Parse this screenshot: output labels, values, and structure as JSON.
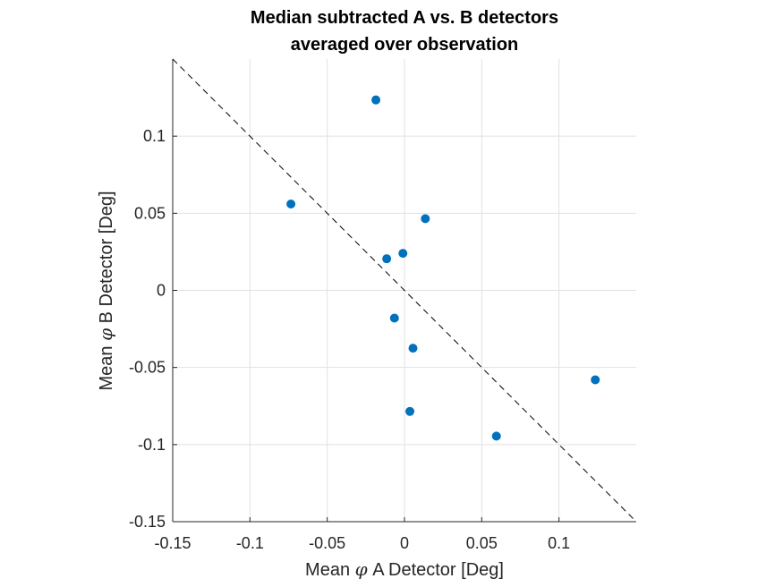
{
  "chart_data": {
    "type": "scatter",
    "title_lines": [
      "Median subtracted A vs. B detectors",
      "averaged over observation"
    ],
    "xlabel_prefix": "Mean ",
    "xlabel_symbol": "φ",
    "xlabel_suffix": " A Detector [Deg]",
    "ylabel_prefix": "Mean ",
    "ylabel_symbol": "φ",
    "ylabel_suffix": " B Detector [Deg]",
    "xlim": [
      -0.15,
      0.15
    ],
    "ylim": [
      -0.15,
      0.15
    ],
    "xticks": [
      -0.15,
      -0.1,
      -0.05,
      0,
      0.05,
      0.1
    ],
    "xtick_labels": [
      "-0.15",
      "-0.1",
      "-0.05",
      "0",
      "0.05",
      "0.1"
    ],
    "yticks": [
      -0.15,
      -0.1,
      -0.05,
      0,
      0.05,
      0.1
    ],
    "ytick_labels": [
      "-0.15",
      "-0.1",
      "-0.05",
      "0",
      "0.05",
      "0.1"
    ],
    "grid": true,
    "marker_color": "#0072BD",
    "reference_line": {
      "style": "dashed",
      "color": "#000000",
      "slope": -1,
      "intercept": 0
    },
    "points": [
      {
        "x": -0.0185,
        "y": 0.1235
      },
      {
        "x": -0.0735,
        "y": 0.056
      },
      {
        "x": 0.0135,
        "y": 0.0465
      },
      {
        "x": -0.0115,
        "y": 0.0205
      },
      {
        "x": -0.001,
        "y": 0.024
      },
      {
        "x": -0.0065,
        "y": -0.018
      },
      {
        "x": 0.0055,
        "y": -0.0375
      },
      {
        "x": 0.0035,
        "y": -0.0785
      },
      {
        "x": 0.0595,
        "y": -0.0945
      },
      {
        "x": 0.1235,
        "y": -0.058
      }
    ]
  }
}
